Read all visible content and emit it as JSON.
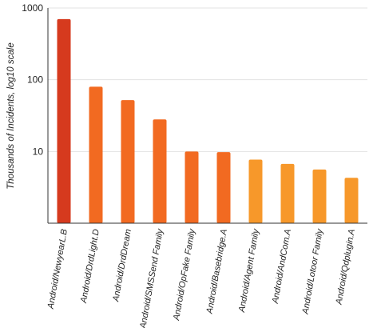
{
  "chart_data": {
    "type": "bar",
    "scale": "log10",
    "ylim": [
      1,
      1000
    ],
    "yticks": [
      "1000",
      "100",
      "10"
    ],
    "ylabel": "Thousands of Incidents, log10 scale",
    "xlabel": "",
    "grid": "horizontal",
    "categories": [
      "Android/NewyearL.B",
      "Android/DrdLight.D",
      "Android/DrdDream",
      "Android/SMSSend Family",
      "Android/OpFake Family",
      "Android/Basebridge.A",
      "Android/Agent Family",
      "Android/AndCom.A",
      "Android/Lotoor Family",
      "Android/Qdplugin.A"
    ],
    "values": [
      700,
      80,
      52,
      28,
      10,
      9.8,
      7.7,
      6.7,
      5.6,
      4.3
    ],
    "colors": [
      "#d63a1e",
      "#f26a21",
      "#f26a21",
      "#f26a21",
      "#f26a21",
      "#f26a21",
      "#f7982a",
      "#f7982a",
      "#f7982a",
      "#f7982a"
    ]
  }
}
